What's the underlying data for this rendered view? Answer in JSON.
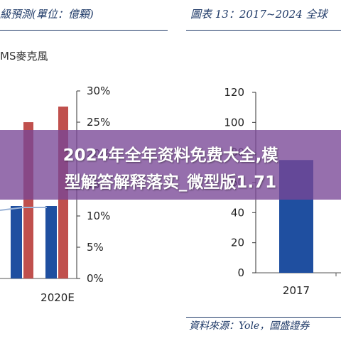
{
  "left_panel": {
    "header": "級預測(單位：億顆)",
    "legend_label": "MS麥克風"
  },
  "right_panel": {
    "header": "圖表 13：2017~2024 全球",
    "source": "資料來源：Yole，國盛證券"
  },
  "banner": {
    "line1": "2024年全年资料免费大全,模",
    "line2": "型解答解释落实_微型版1.71"
  },
  "chart_data": [
    {
      "type": "bar",
      "title": "",
      "xlabel": "",
      "ylabel": "",
      "categories": [
        "",
        "2020E"
      ],
      "y2_ticks": [
        "30%",
        "25%",
        "20%",
        "15%",
        "10%",
        "5%",
        "0%"
      ],
      "y2lim": [
        0,
        30
      ],
      "series": [
        {
          "values": [
            11,
            12
          ],
          "color": "#1f4fa0",
          "axis": "left"
        },
        {
          "values": [
            25,
            27.5
          ],
          "color": "#c0504d",
          "axis": "right"
        }
      ]
    },
    {
      "type": "bar",
      "title": "",
      "xlabel": "",
      "ylabel": "",
      "categories": [
        "2017"
      ],
      "y_ticks": [
        "120",
        "100",
        "80",
        "60",
        "40",
        "20",
        "0"
      ],
      "ylim": [
        0,
        120
      ],
      "series": [
        {
          "values": [
            75
          ],
          "color": "#1f4fa0"
        }
      ]
    }
  ]
}
